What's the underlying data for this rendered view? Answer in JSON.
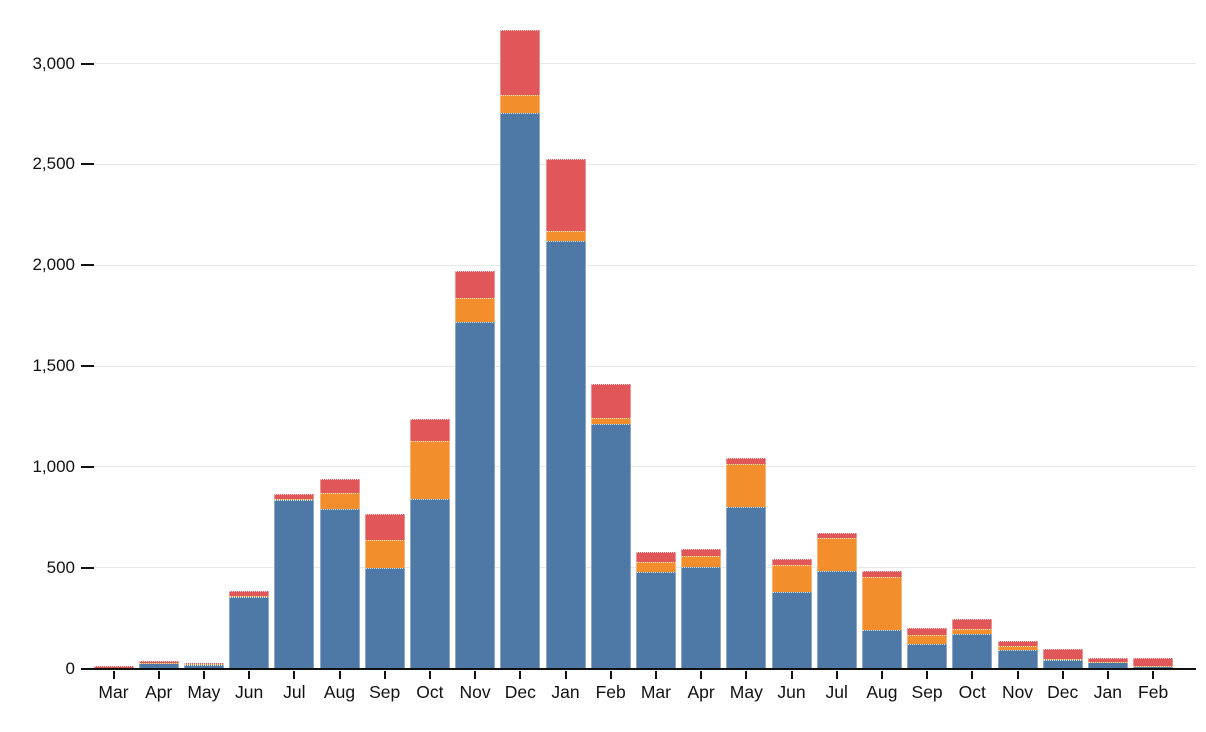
{
  "chart_data": {
    "type": "bar",
    "stacked": true,
    "title": "",
    "xlabel": "",
    "ylabel": "",
    "grid": true,
    "legend_position": "none",
    "ylim": [
      0,
      3200
    ],
    "yticks": [
      0,
      500,
      1000,
      1500,
      2000,
      2500,
      3000
    ],
    "ytick_labels": [
      "0",
      "500",
      "1,000",
      "1,500",
      "2,000",
      "2,500",
      "3,000"
    ],
    "categories": [
      "Mar",
      "Apr",
      "May",
      "Jun",
      "Jul",
      "Aug",
      "Sep",
      "Oct",
      "Nov",
      "Dec",
      "Jan",
      "Feb",
      "Mar",
      "Apr",
      "May",
      "Jun",
      "Jul",
      "Aug",
      "Sep",
      "Oct",
      "Nov",
      "Dec",
      "Jan",
      "Feb"
    ],
    "series": [
      {
        "name": "blue-series",
        "color": "#4e79a7",
        "values": [
          3,
          25,
          18,
          355,
          835,
          790,
          500,
          840,
          1720,
          2755,
          2120,
          1210,
          480,
          505,
          800,
          380,
          485,
          190,
          120,
          170,
          90,
          40,
          30,
          10
        ]
      },
      {
        "name": "orange-series",
        "color": "#f28e2b",
        "values": [
          0,
          2,
          2,
          5,
          5,
          78,
          138,
          290,
          115,
          90,
          50,
          30,
          50,
          55,
          212,
          135,
          160,
          265,
          45,
          28,
          20,
          5,
          2,
          2
        ]
      },
      {
        "name": "red-series",
        "color": "#e15759",
        "values": [
          9,
          10,
          5,
          25,
          25,
          72,
          127,
          108,
          135,
          320,
          355,
          172,
          50,
          35,
          33,
          30,
          25,
          30,
          35,
          45,
          27,
          50,
          20,
          40
        ]
      }
    ]
  },
  "colors": {
    "background": "#ffffff",
    "gridline": "#e8e8e8",
    "axis": "#111111",
    "text": "#111111"
  }
}
